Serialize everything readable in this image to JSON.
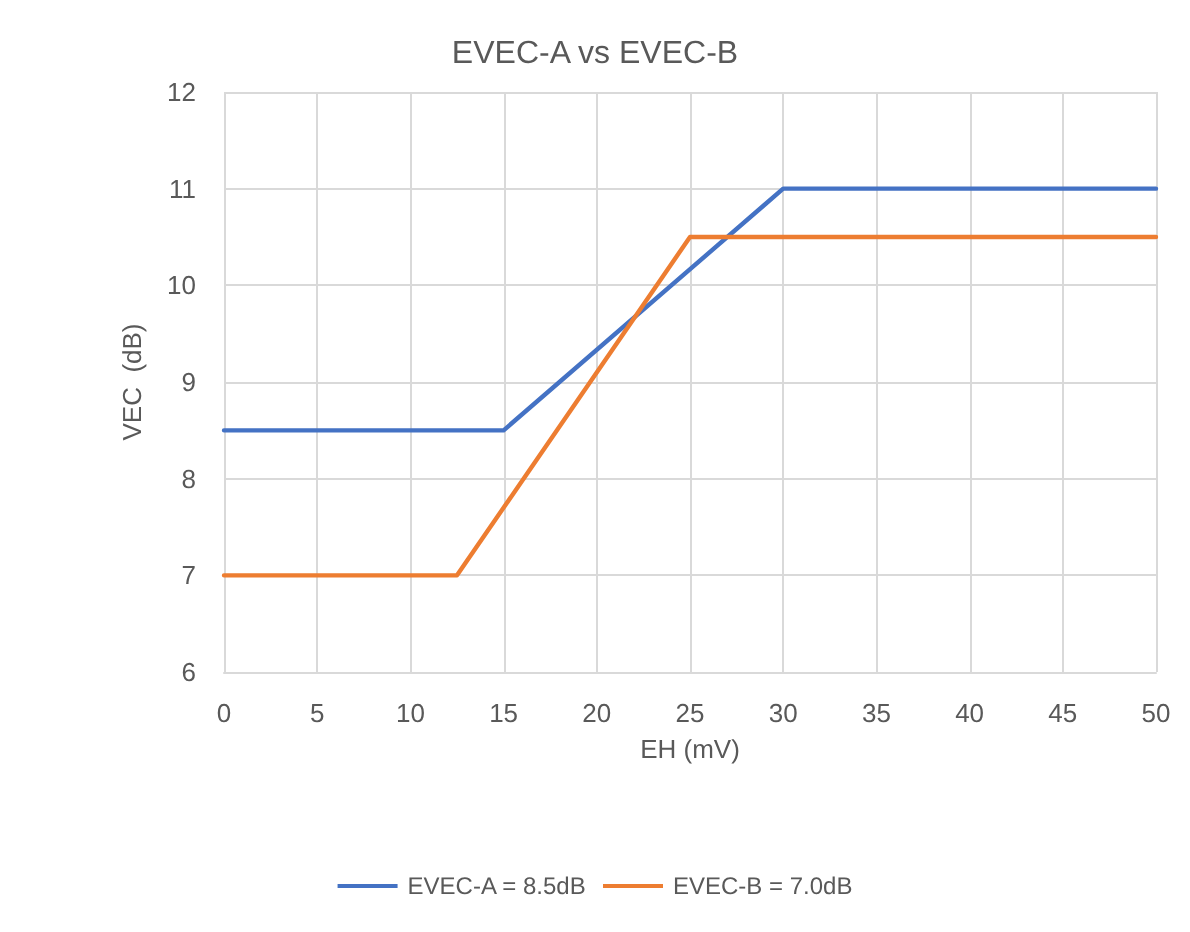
{
  "chart_data": {
    "type": "line",
    "title": "EVEC-A vs EVEC-B",
    "xlabel": "EH (mV)",
    "ylabel": "VEC  (dB)",
    "series": [
      {
        "name": "EVEC-A = 8.5dB",
        "color": "#4472c4",
        "x": [
          0,
          15,
          30,
          50
        ],
        "values": [
          8.5,
          8.5,
          11,
          11
        ]
      },
      {
        "name": "EVEC-B = 7.0dB",
        "color": "#ed7d31",
        "x": [
          0,
          12.5,
          25,
          50
        ],
        "values": [
          7,
          7,
          10.5,
          10.5
        ]
      }
    ],
    "xlim": [
      0,
      50
    ],
    "xticks": [
      0,
      5,
      10,
      15,
      20,
      25,
      30,
      35,
      40,
      45,
      50
    ],
    "ylim": [
      6,
      12
    ],
    "yticks": [
      6,
      7,
      8,
      9,
      10,
      11,
      12
    ],
    "grid": true,
    "legend": "bottom",
    "marker": "none",
    "line_style": "solid"
  }
}
